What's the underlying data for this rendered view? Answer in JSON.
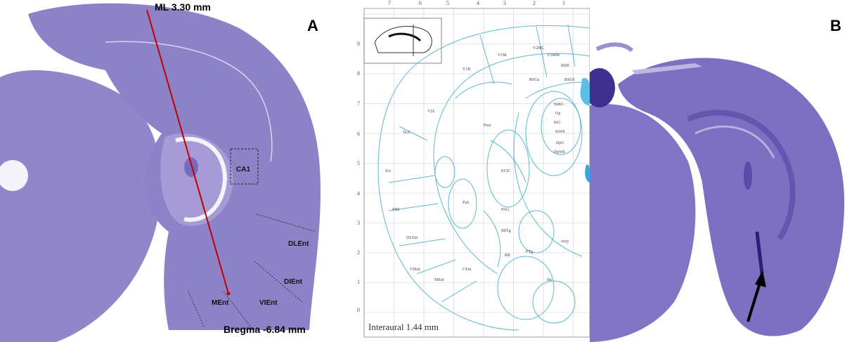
{
  "panel_a": {
    "letter": "A",
    "ml_label": "ML 3.30 mm",
    "bregma_label": "Bregma -6.84 mm",
    "regions": {
      "ca1": "CA1",
      "dlent": "DLEnt",
      "dient": "DIEnt",
      "vient": "VIEnt",
      "ment": "MEnt"
    },
    "colors": {
      "tissue": "#8b7fc8",
      "line": "#c00000"
    }
  },
  "atlas": {
    "interaural_label": "Interaural 1.44 mm",
    "top_ticks": [
      "7",
      "6",
      "5",
      "4",
      "3",
      "2",
      "1"
    ],
    "left_ticks": [
      "9",
      "8",
      "7",
      "6",
      "5",
      "4",
      "3",
      "2",
      "1",
      "0"
    ],
    "region_labels": [
      "V1M",
      "V1B",
      "V2ML",
      "V2MM",
      "RSD",
      "V2L",
      "RSGa",
      "RSGb",
      "TeA",
      "Post",
      "Ect",
      "PRh",
      "DLEnt",
      "VIEnt",
      "MEnt",
      "CEnt",
      "ECIC",
      "PaS",
      "SubG",
      "Op",
      "InG",
      "InWh",
      "DpG",
      "DpWh",
      "PAG",
      "MiTg",
      "RR",
      "PTg",
      "xscp",
      "IIn"
    ],
    "colors": {
      "lines": "#5bb8d6",
      "fill": "#5bc0e8"
    }
  },
  "panel_b": {
    "letter": "B",
    "colors": {
      "tissue": "#7a6cc0"
    },
    "arrow_icon": "arrow-icon"
  }
}
